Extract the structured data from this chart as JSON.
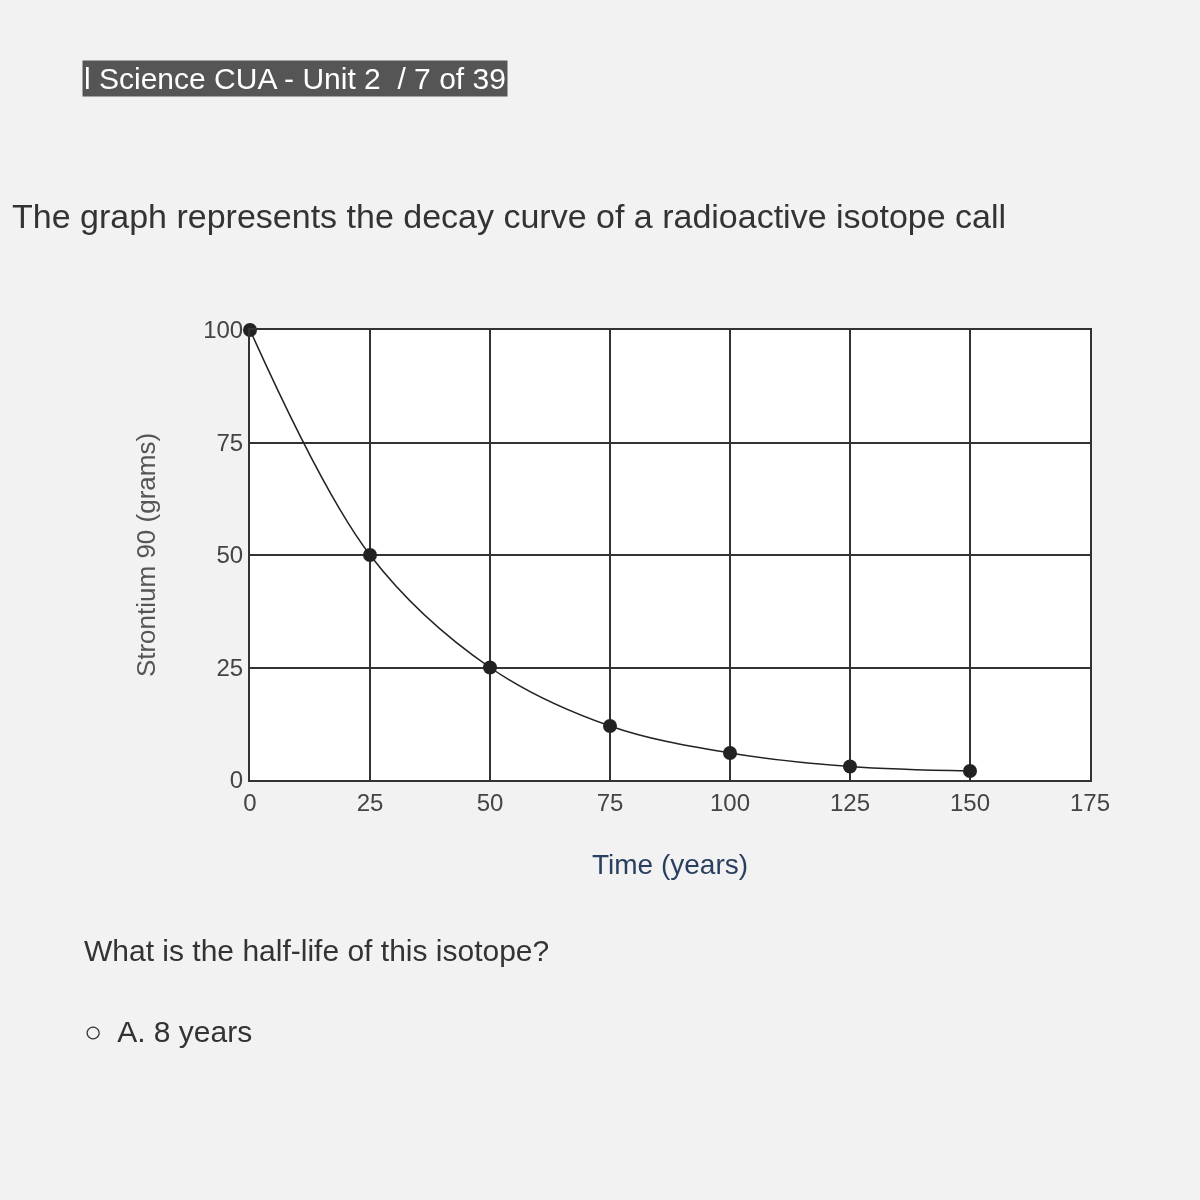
{
  "chart_data": {
    "type": "line",
    "title": "The graph represents the decay curve of a radioactive isotope call",
    "subtitle": "l Science CUA - Unit 2  / 7 of 39",
    "xlabel": "Time (years)",
    "ylabel": "Strontium 90 (grams)",
    "x": [
      0,
      25,
      50,
      75,
      100,
      125,
      150
    ],
    "series": [
      {
        "color": "#222222",
        "values": [
          100,
          50,
          25,
          12,
          6,
          3,
          2
        ]
      }
    ],
    "xlim": [
      0,
      175
    ],
    "xticks": [
      0,
      25,
      50,
      75,
      100,
      125,
      150,
      175
    ],
    "ylim": [
      0,
      100
    ],
    "yticks": [
      0,
      25,
      50,
      75,
      100
    ],
    "grid": true,
    "marker": "circle",
    "line_style": "solid",
    "annotations": [
      "What is the half-life of this isotope?",
      "○  A. 8 years"
    ]
  }
}
